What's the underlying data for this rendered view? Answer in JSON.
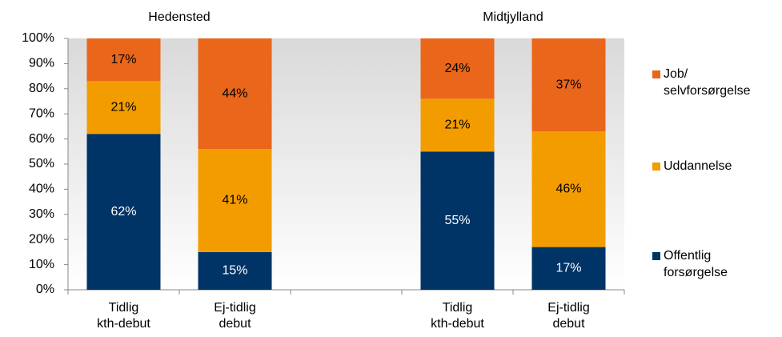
{
  "chart_data": {
    "type": "stacked_bar",
    "annotations": [
      "Hedensted",
      "Midtjylland"
    ],
    "categories": [
      "Tidlig kth-debut",
      "Ej-tidlig debut",
      null,
      "Tidlig kth-debut",
      "Ej-tidlig debut"
    ],
    "series": [
      {
        "name": "Offentlig forsørgelse",
        "color": "#003366",
        "values": [
          62,
          15,
          null,
          55,
          17
        ],
        "value_labels": [
          "62%",
          "15%",
          null,
          "55%",
          "17%"
        ]
      },
      {
        "name": "Uddannelse",
        "color": "#f39c00",
        "values": [
          21,
          41,
          null,
          21,
          46
        ],
        "value_labels": [
          "21%",
          "41%",
          null,
          "21%",
          "46%"
        ]
      },
      {
        "name": "Job/ selvforsørgelse",
        "color": "#e9661a",
        "values": [
          17,
          44,
          null,
          24,
          37
        ],
        "value_labels": [
          "17%",
          "44%",
          null,
          "24%",
          "37%"
        ]
      }
    ],
    "ylim": [
      0,
      100
    ],
    "yticks": [
      {
        "value": 0,
        "label": "0%"
      },
      {
        "value": 10,
        "label": "10%"
      },
      {
        "value": 20,
        "label": "20%"
      },
      {
        "value": 30,
        "label": "30%"
      },
      {
        "value": 40,
        "label": "40%"
      },
      {
        "value": 50,
        "label": "50%"
      },
      {
        "value": 60,
        "label": "60%"
      },
      {
        "value": 70,
        "label": "70%"
      },
      {
        "value": 80,
        "label": "80%"
      },
      {
        "value": 90,
        "label": "90%"
      },
      {
        "value": 100,
        "label": "100%"
      }
    ],
    "legend": "right"
  }
}
